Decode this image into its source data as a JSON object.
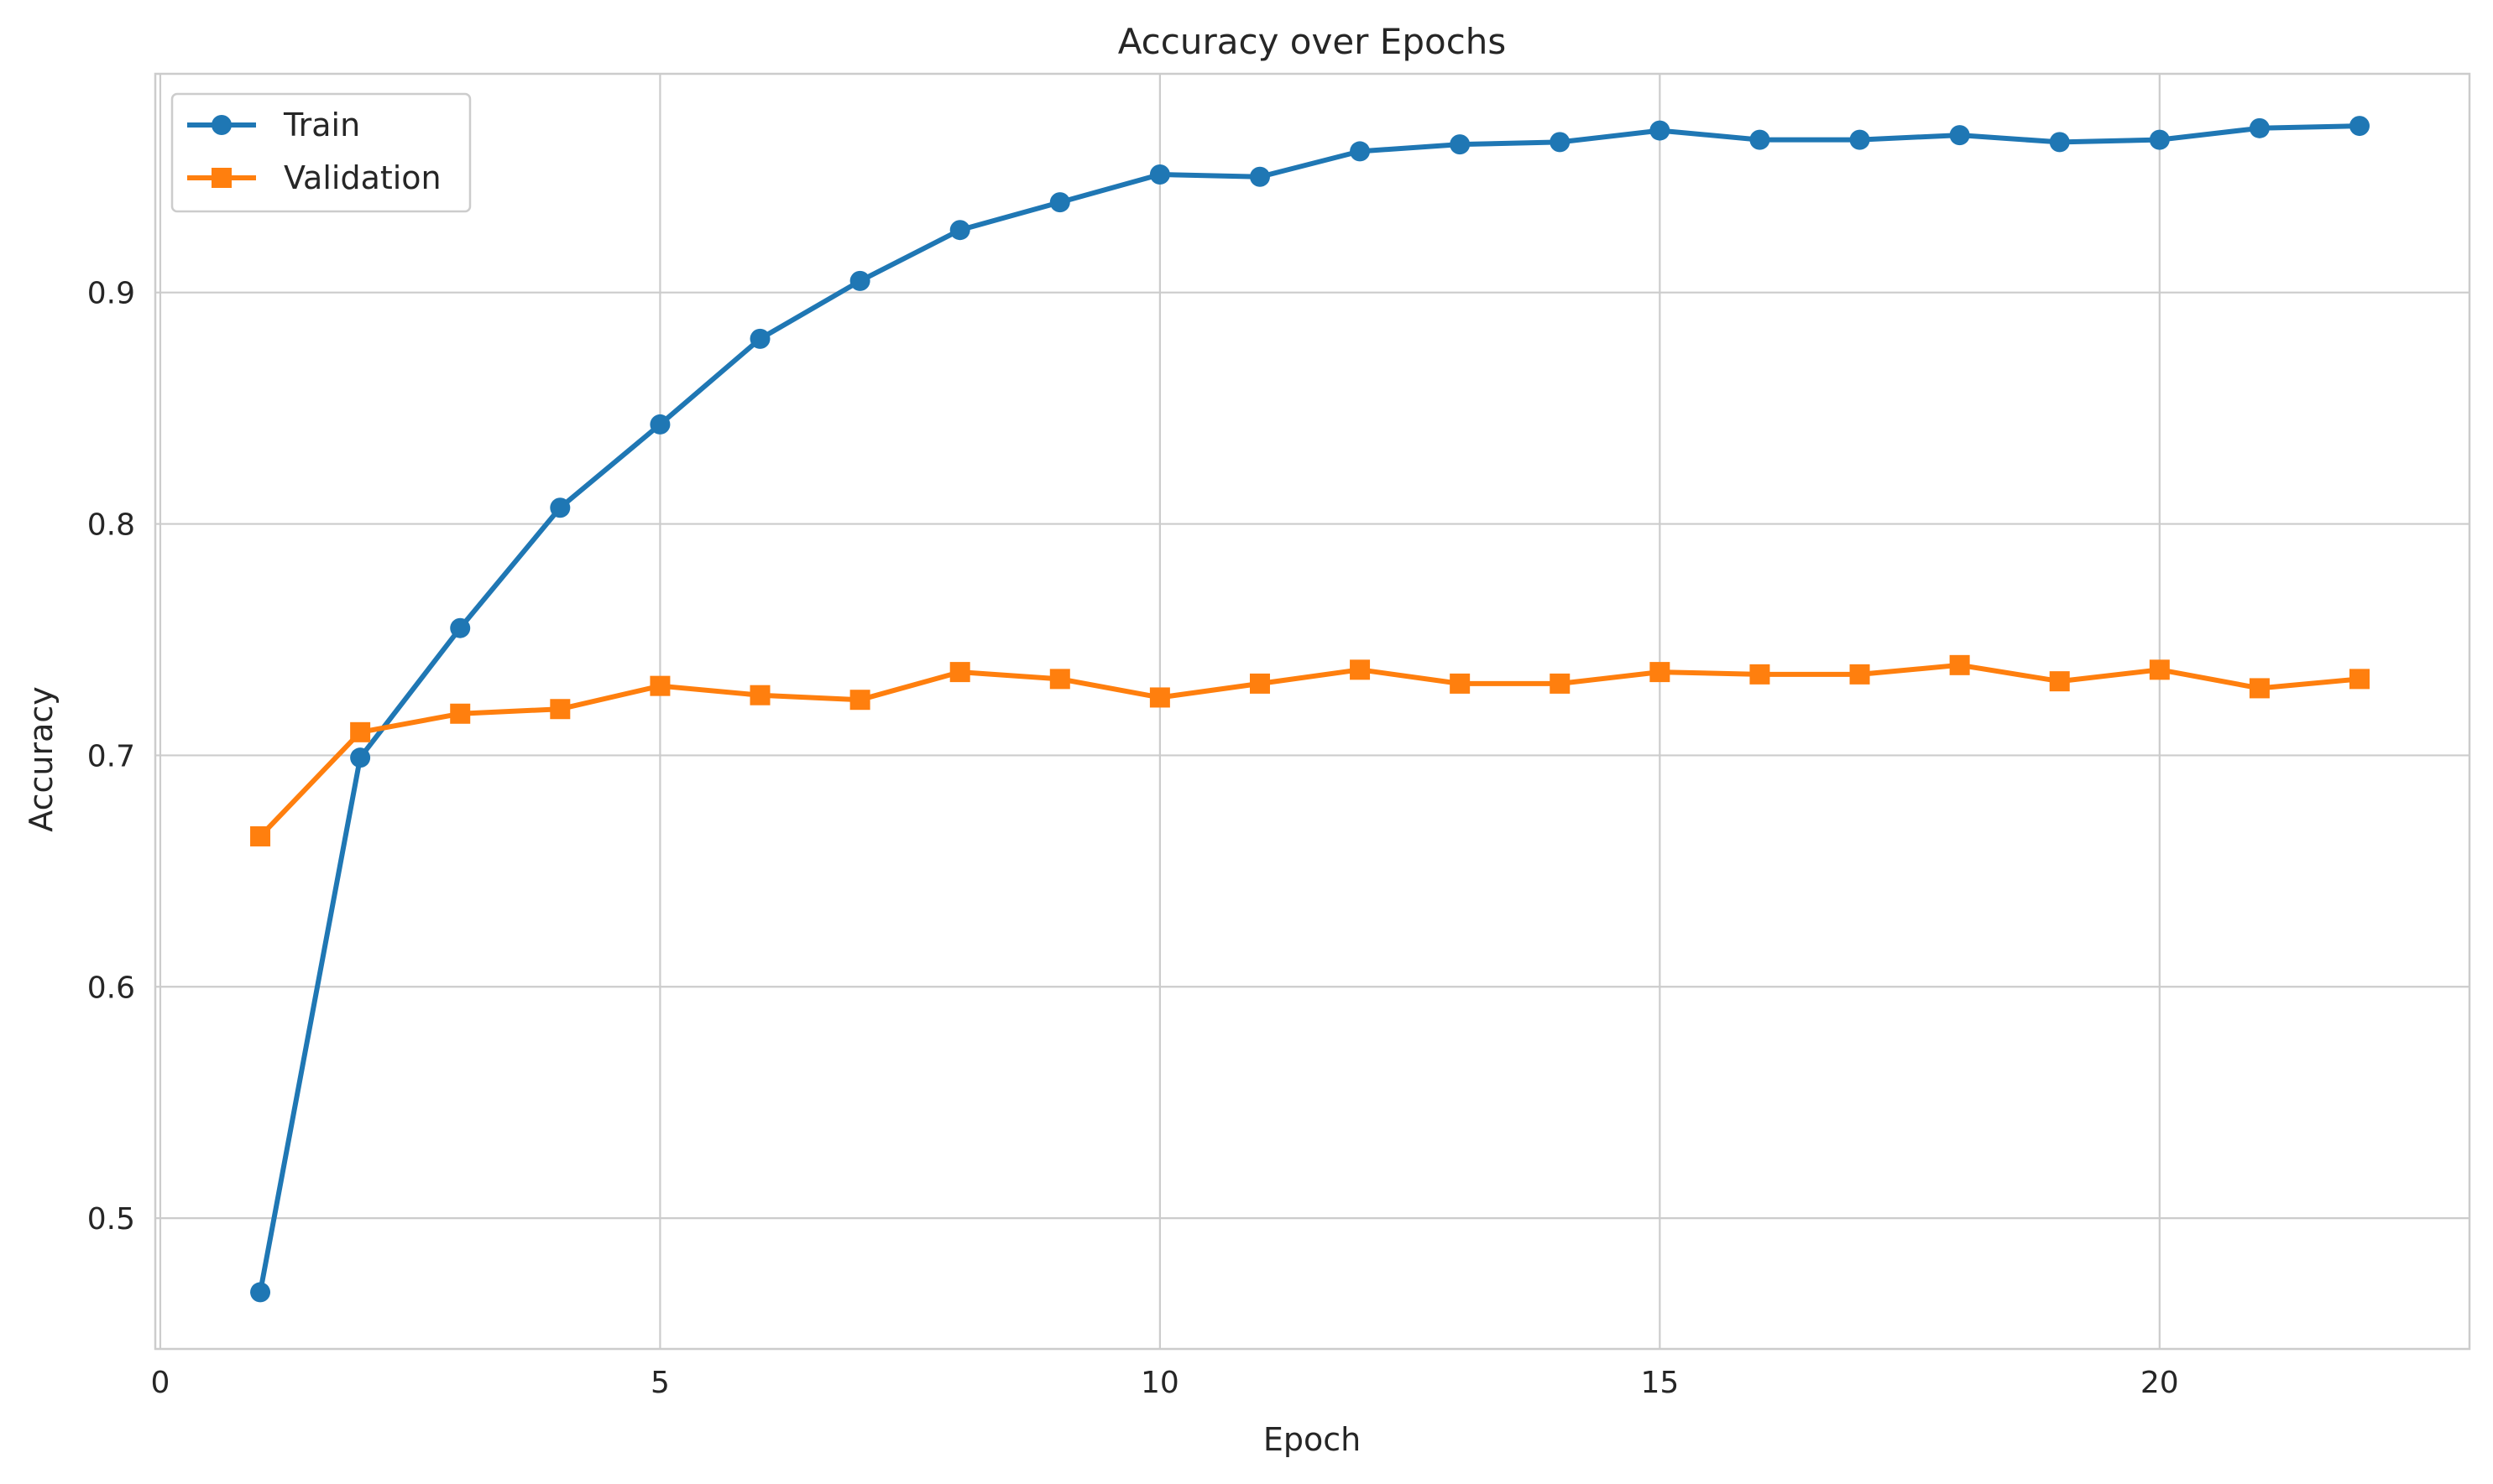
{
  "chart_data": {
    "type": "line",
    "title": "Accuracy over Epochs",
    "xlabel": "Epoch",
    "ylabel": "Accuracy",
    "xlim": [
      -0.05,
      23.1
    ],
    "ylim": [
      0.4435,
      0.9945
    ],
    "x_ticks": [
      0,
      5,
      10,
      15,
      20
    ],
    "y_ticks": [
      0.5,
      0.6,
      0.7,
      0.8,
      0.9
    ],
    "x_tick_labels": [
      "0",
      "5",
      "10",
      "15",
      "20"
    ],
    "y_tick_labels": [
      "0.5",
      "0.6",
      "0.7",
      "0.8",
      "0.9"
    ],
    "grid": true,
    "legend_position": "top-left",
    "x": [
      1,
      2,
      3,
      4,
      5,
      6,
      7,
      8,
      9,
      10,
      11,
      12,
      13,
      14,
      15,
      16,
      17,
      18,
      19,
      20,
      21,
      22
    ],
    "series": [
      {
        "name": "Train",
        "marker": "circle",
        "color": "#1f77b4",
        "values": [
          0.468,
          0.699,
          0.755,
          0.807,
          0.843,
          0.88,
          0.905,
          0.927,
          0.939,
          0.951,
          0.95,
          0.961,
          0.964,
          0.965,
          0.97,
          0.966,
          0.966,
          0.968,
          0.965,
          0.966,
          0.971,
          0.972
        ]
      },
      {
        "name": "Validation",
        "marker": "square",
        "color": "#ff7f0e",
        "values": [
          0.665,
          0.71,
          0.718,
          0.72,
          0.73,
          0.726,
          0.724,
          0.736,
          0.733,
          0.725,
          0.731,
          0.737,
          0.731,
          0.731,
          0.736,
          0.735,
          0.735,
          0.739,
          0.732,
          0.737,
          0.729,
          0.733
        ]
      }
    ]
  },
  "colors": {
    "grid": "#cccccc",
    "axis_edge": "#cccccc",
    "text": "#262626",
    "legend_edge": "#cccccc"
  }
}
